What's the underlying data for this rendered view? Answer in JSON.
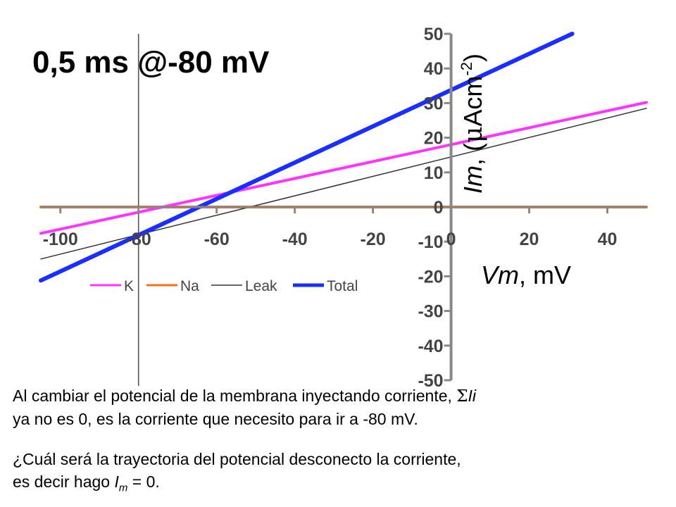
{
  "chart_data": {
    "type": "line",
    "title": "0,5 ms @-80 mV",
    "xlabel": {
      "main": "Vm",
      "rest": ", mV"
    },
    "ylabel": {
      "main": "Im",
      "rest": ", (",
      "mu": "μ",
      "unit": "Acm",
      "exp": "-2",
      "close": ")"
    },
    "xlim": [
      -105,
      50
    ],
    "ylim": [
      -50,
      50
    ],
    "x_ticks": [
      "-100",
      "-80",
      "-60",
      "-40",
      "-20",
      "0",
      "20",
      "40"
    ],
    "y_ticks": [
      "50",
      "40",
      "30",
      "20",
      "10",
      "0",
      "-10",
      "-20",
      "-30",
      "-40",
      "-50"
    ],
    "legend_position": "bottom-left",
    "series": [
      {
        "name": "K",
        "color": "#ff33ff",
        "width": 4,
        "points": [
          [
            -105,
            -7.6
          ],
          [
            50,
            30.2
          ]
        ]
      },
      {
        "name": "Na",
        "color": "#ff6a13",
        "width": 4,
        "points": [
          [
            -105,
            0
          ],
          [
            50,
            0
          ]
        ]
      },
      {
        "name": "Leak",
        "color": "#333333",
        "width": 1.5,
        "points": [
          [
            -105,
            -15
          ],
          [
            50,
            28.5
          ]
        ]
      },
      {
        "name": "Total",
        "color": "#1a2fff",
        "width": 6,
        "points": [
          [
            -105,
            -21.2
          ],
          [
            31,
            50
          ]
        ]
      }
    ],
    "extra_vertical_line_x": -80
  },
  "text": {
    "para1": {
      "line1": "Al cambiar el potencial de la membrana inyectando corriente, ",
      "sigma": "Σ",
      "li": "Ii",
      "line2": "ya no es 0, es la corriente que necesito para ir a -80 mV."
    },
    "para2": {
      "line1": "¿Cuál será la trayectoria del potencial desconecto la corriente,",
      "line2a": "es decir hago ",
      "im": "I",
      "sub": "m",
      "line2b": " = 0."
    }
  }
}
